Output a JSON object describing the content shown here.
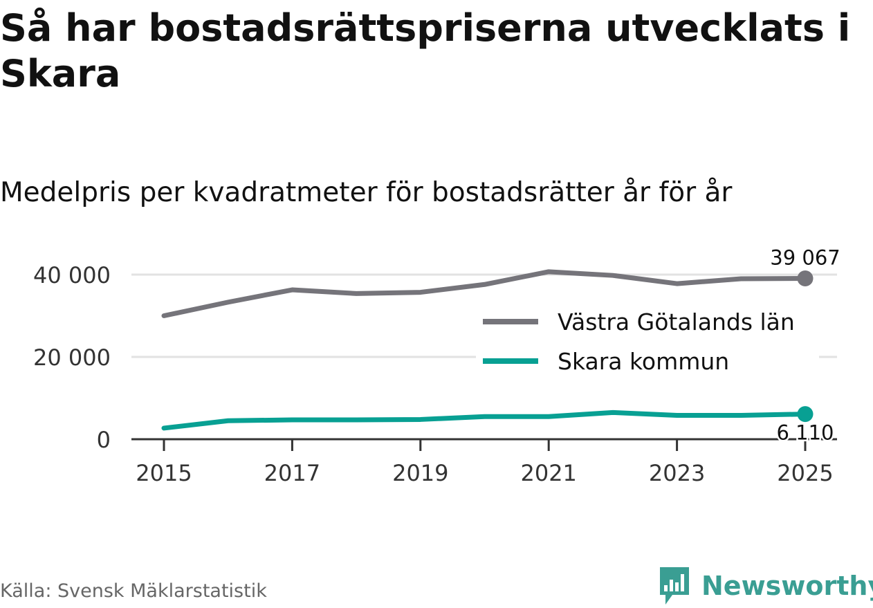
{
  "title": "Så har bostadsrättspriserna utvecklats i Skara",
  "subtitle": "Medelpris per kvadratmeter för bostadsrätter år för år",
  "source": "Källa: Svensk Mäklarstatistik",
  "brand": {
    "name": "Newsworthy",
    "color": "#3a9e93",
    "logo_icon": "newsworthy-logo-icon"
  },
  "colors": {
    "region": "#75747a",
    "municipality": "#08a093",
    "grid": "#e2e2e2",
    "axis": "#333333",
    "text": "#333333"
  },
  "chart_data": {
    "type": "line",
    "title": "Medelpris per kvadratmeter för bostadsrätter år för år",
    "xlabel": "",
    "ylabel": "",
    "x": [
      2015,
      2016,
      2017,
      2018,
      2019,
      2020,
      2021,
      2022,
      2023,
      2024,
      2025
    ],
    "xticks": [
      "2015",
      "2017",
      "2019",
      "2021",
      "2023",
      "2025"
    ],
    "yticks": [
      0,
      20000,
      40000
    ],
    "ytick_labels": [
      "0",
      "20 000",
      "40 000"
    ],
    "ylim": [
      0,
      40000
    ],
    "grid": true,
    "legend_position": "right",
    "series": [
      {
        "name": "Västra Götalands län",
        "color": "#75747a",
        "values": [
          30000,
          33300,
          36300,
          35400,
          35700,
          37600,
          40700,
          39800,
          37800,
          39000,
          39067
        ],
        "end_label": "39 067"
      },
      {
        "name": "Skara kommun",
        "color": "#08a093",
        "values": [
          2700,
          4500,
          4700,
          4700,
          4800,
          5500,
          5500,
          6500,
          5800,
          5800,
          6110
        ],
        "end_label": "6 110"
      }
    ]
  }
}
